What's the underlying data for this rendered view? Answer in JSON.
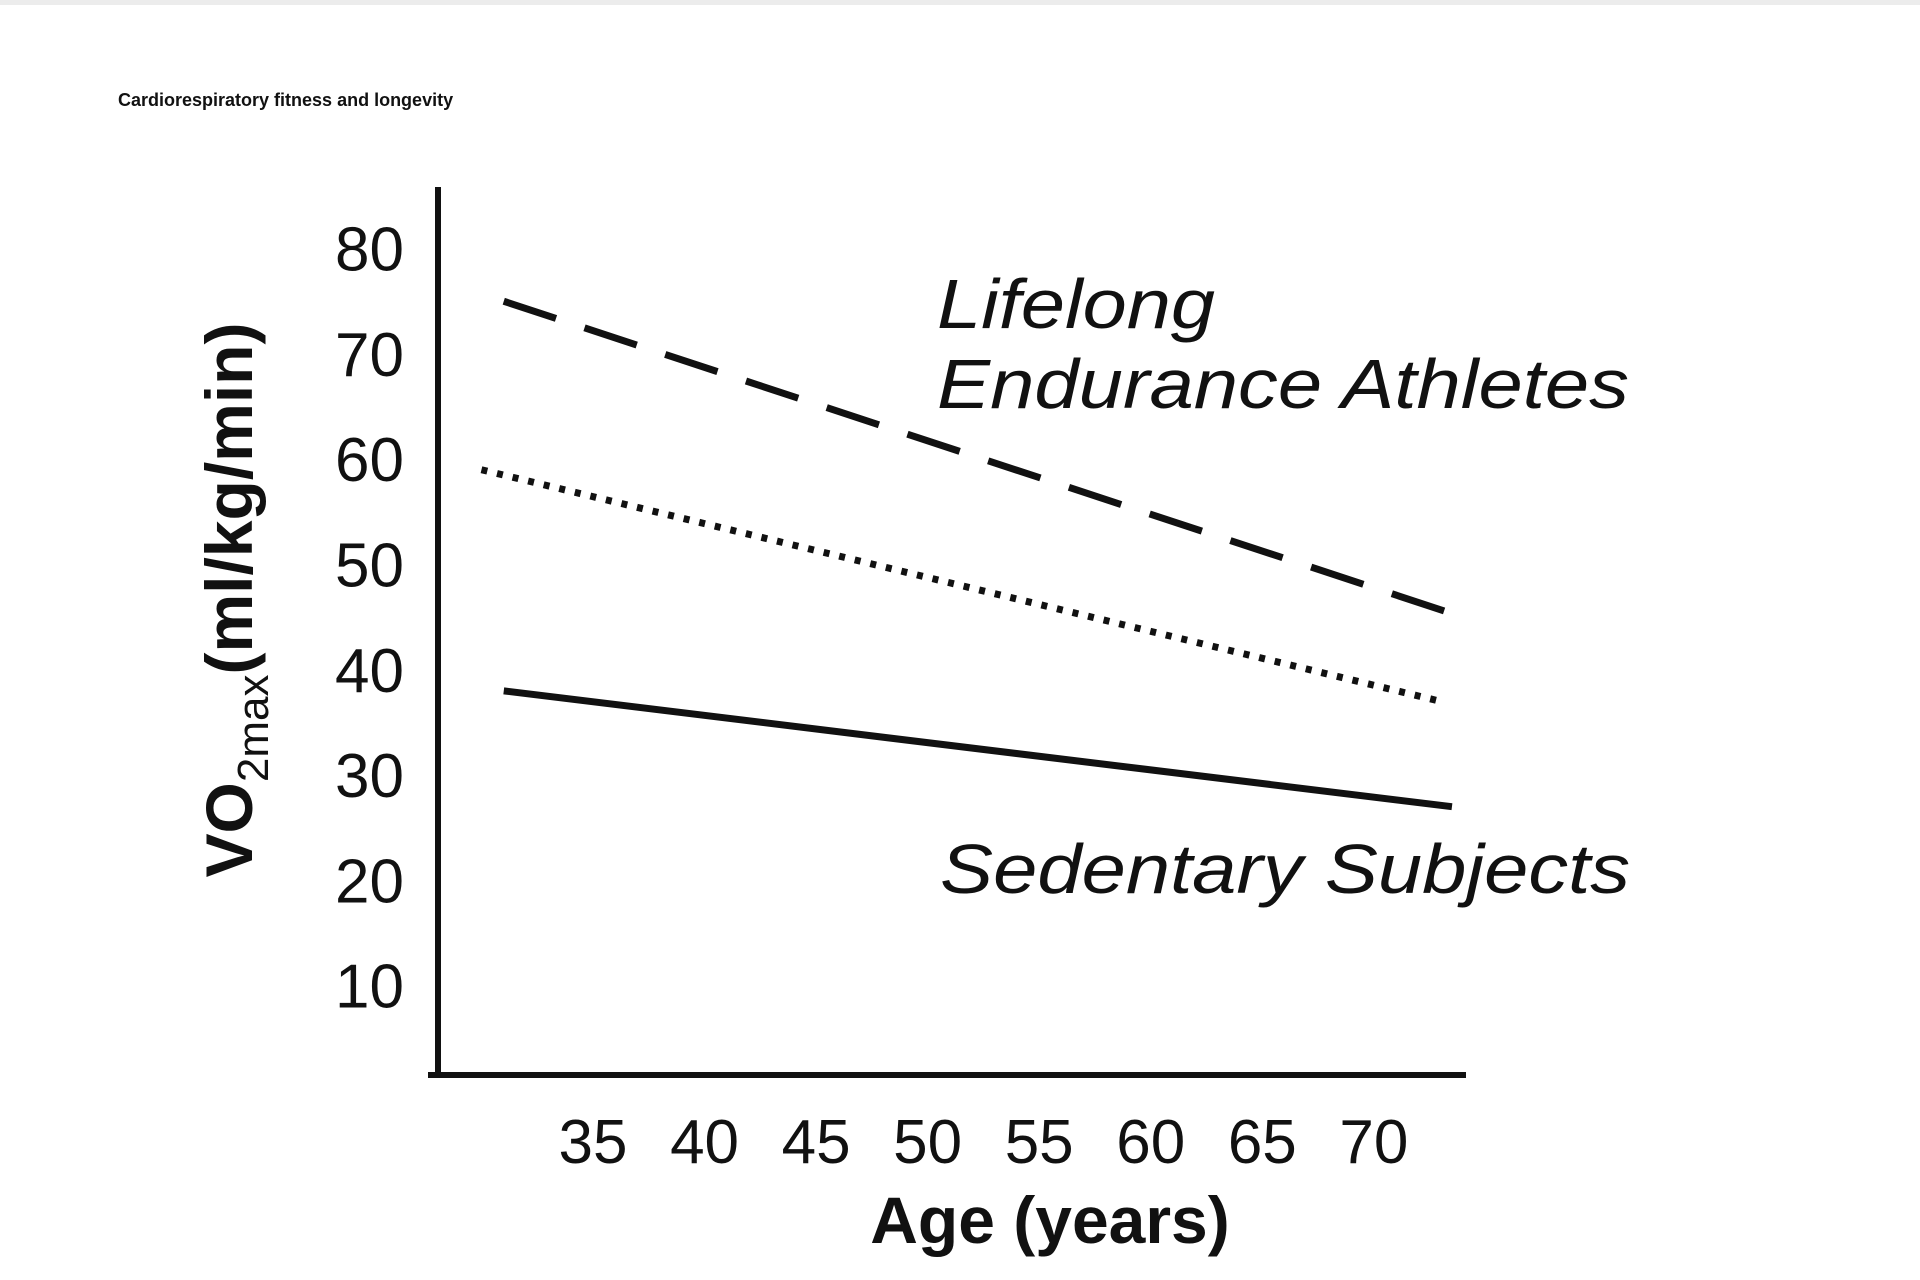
{
  "chart_data": {
    "type": "line",
    "title": "Cardiorespiratory fitness and longevity",
    "xlabel": "Age (years)",
    "ylabel": {
      "main": "VO",
      "subscript": "2max",
      "unit": "(ml/kg/min)"
    },
    "x_ticks": [
      35,
      40,
      45,
      50,
      55,
      60,
      65,
      70
    ],
    "y_ticks": [
      10,
      20,
      30,
      40,
      50,
      60,
      70,
      80
    ],
    "xlim": [
      26,
      75
    ],
    "ylim": [
      0,
      85
    ],
    "grid": false,
    "series": [
      {
        "style": "dashed",
        "x": [
          31,
          74
        ],
        "y": [
          75,
          45
        ]
      },
      {
        "style": "dotted",
        "x": [
          30,
          73
        ],
        "y": [
          59,
          37
        ]
      },
      {
        "style": "solid",
        "x": [
          31,
          73.5
        ],
        "y": [
          38,
          27
        ]
      }
    ],
    "annotations": {
      "athletes_line1": "Lifelong",
      "athletes_line2": "Endurance Athletes",
      "sedentary": "Sedentary Subjects"
    },
    "colors": {
      "line": "#111111",
      "background": "#ffffff"
    }
  }
}
